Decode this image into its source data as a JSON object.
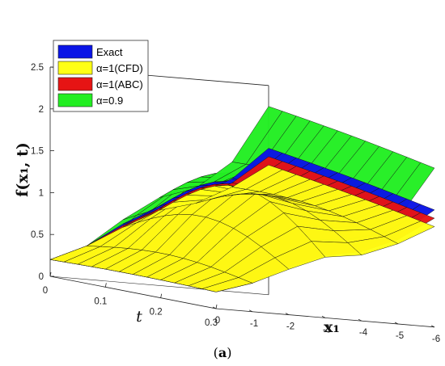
{
  "chart_data": {
    "type": "surface",
    "z_axis": {
      "label": "f(x₁, t)",
      "ticks": [
        "0",
        "0.5",
        "1",
        "1.5",
        "2",
        "2.5"
      ],
      "range": [
        0,
        2.5
      ]
    },
    "t_axis": {
      "label": "t",
      "ticks": [
        "0",
        "0.1",
        "0.2",
        "0.3"
      ],
      "range": [
        0,
        0.3
      ]
    },
    "x_axis": {
      "label": "x₁",
      "ticks": [
        "0",
        "-1",
        "-2",
        "-3",
        "-4",
        "-5",
        "-6"
      ],
      "range": [
        0,
        -6
      ]
    },
    "legend": {
      "position": "top-left",
      "entries": [
        {
          "label": "Exact",
          "color": "#0a14e6"
        },
        {
          "label": "α=1(CFD)",
          "color": "#ffff14"
        },
        {
          "label": "α=1(ABC)",
          "color": "#e61414"
        },
        {
          "label": "α=0.9",
          "color": "#22ee22"
        }
      ]
    },
    "series": [
      {
        "name": "α=0.9",
        "color": "#22ee22",
        "z_at_t0": [
          0.2,
          0.4,
          0.75,
          1.05,
          1.2,
          1.55,
          2.25
        ]
      },
      {
        "name": "Exact",
        "color": "#0a14e6",
        "z_at_t0": [
          0.2,
          0.4,
          0.7,
          0.95,
          1.1,
          1.35,
          1.75
        ]
      },
      {
        "name": "α=1(ABC)",
        "color": "#e61414",
        "z_at_t0": [
          0.2,
          0.4,
          0.68,
          0.92,
          1.06,
          1.3,
          1.65
        ]
      },
      {
        "name": "α=1(CFD)",
        "color": "#ffff14",
        "z_at_t0": [
          0.2,
          0.4,
          0.66,
          0.9,
          1.02,
          1.25,
          1.55
        ]
      }
    ]
  },
  "caption": {
    "open": "(",
    "letter": "a",
    "close": ")"
  }
}
